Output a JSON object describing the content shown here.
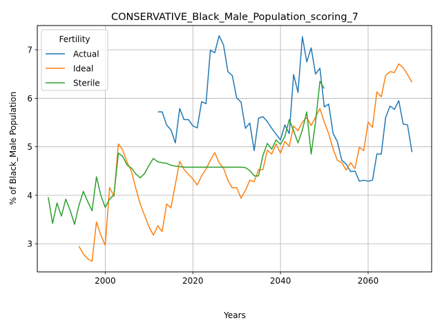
{
  "chart_data": {
    "type": "line",
    "title": "CONSERVATIVE_Black_Male_Population_scoring_7",
    "xlabel": "Years",
    "ylabel": "% of Black_Male Population",
    "xlim": [
      1984.5,
      2074.5
    ],
    "ylim": [
      2.42,
      7.5
    ],
    "x_ticks": [
      2000,
      2020,
      2040,
      2060
    ],
    "y_ticks": [
      3,
      4,
      5,
      6,
      7
    ],
    "grid": true,
    "legend": {
      "title": "Fertility",
      "placement": "top-left"
    },
    "series": [
      {
        "name": "Actual",
        "color": "#1f77b4",
        "points": [
          [
            2012,
            5.72
          ],
          [
            2013,
            5.72
          ],
          [
            2014,
            5.45
          ],
          [
            2015,
            5.35
          ],
          [
            2016,
            5.08
          ],
          [
            2017,
            5.79
          ],
          [
            2018,
            5.56
          ],
          [
            2019,
            5.56
          ],
          [
            2020,
            5.43
          ],
          [
            2021,
            5.39
          ],
          [
            2022,
            5.93
          ],
          [
            2023,
            5.89
          ],
          [
            2024,
            6.99
          ],
          [
            2025,
            6.94
          ],
          [
            2026,
            7.29
          ],
          [
            2027,
            7.1
          ],
          [
            2028,
            6.55
          ],
          [
            2029,
            6.47
          ],
          [
            2030,
            6.01
          ],
          [
            2031,
            5.92
          ],
          [
            2032,
            5.38
          ],
          [
            2033,
            5.49
          ],
          [
            2034,
            4.92
          ],
          [
            2035,
            5.59
          ],
          [
            2036,
            5.62
          ],
          [
            2037,
            5.52
          ],
          [
            2038,
            5.38
          ],
          [
            2039,
            5.26
          ],
          [
            2040,
            5.14
          ],
          [
            2041,
            5.45
          ],
          [
            2042,
            5.27
          ],
          [
            2043,
            6.49
          ],
          [
            2044,
            6.12
          ],
          [
            2045,
            7.27
          ],
          [
            2046,
            6.75
          ],
          [
            2047,
            7.04
          ],
          [
            2048,
            6.5
          ],
          [
            2049,
            6.62
          ],
          [
            2050,
            5.82
          ],
          [
            2051,
            5.88
          ],
          [
            2052,
            5.28
          ],
          [
            2053,
            5.1
          ],
          [
            2054,
            4.72
          ],
          [
            2055,
            4.64
          ],
          [
            2056,
            4.49
          ],
          [
            2057,
            4.5
          ],
          [
            2058,
            4.29
          ],
          [
            2059,
            4.31
          ],
          [
            2060,
            4.29
          ],
          [
            2061,
            4.31
          ],
          [
            2062,
            4.85
          ],
          [
            2063,
            4.85
          ],
          [
            2064,
            5.6
          ],
          [
            2065,
            5.84
          ],
          [
            2066,
            5.77
          ],
          [
            2067,
            5.95
          ],
          [
            2068,
            5.47
          ],
          [
            2069,
            5.45
          ],
          [
            2070,
            4.89
          ]
        ]
      },
      {
        "name": "Ideal",
        "color": "#ff7f0e",
        "points": [
          [
            1994,
            2.95
          ],
          [
            1995,
            2.79
          ],
          [
            1996,
            2.69
          ],
          [
            1997,
            2.64
          ],
          [
            1998,
            3.45
          ],
          [
            1999,
            3.18
          ],
          [
            2000,
            2.97
          ],
          [
            2001,
            4.16
          ],
          [
            2002,
            3.98
          ],
          [
            2003,
            5.06
          ],
          [
            2004,
            4.93
          ],
          [
            2005,
            4.68
          ],
          [
            2006,
            4.49
          ],
          [
            2007,
            4.14
          ],
          [
            2008,
            3.82
          ],
          [
            2009,
            3.58
          ],
          [
            2010,
            3.35
          ],
          [
            2011,
            3.18
          ],
          [
            2012,
            3.37
          ],
          [
            2013,
            3.25
          ],
          [
            2014,
            3.82
          ],
          [
            2015,
            3.74
          ],
          [
            2016,
            4.22
          ],
          [
            2017,
            4.7
          ],
          [
            2018,
            4.53
          ],
          [
            2019,
            4.43
          ],
          [
            2020,
            4.34
          ],
          [
            2021,
            4.21
          ],
          [
            2022,
            4.4
          ],
          [
            2023,
            4.54
          ],
          [
            2024,
            4.72
          ],
          [
            2025,
            4.88
          ],
          [
            2026,
            4.67
          ],
          [
            2027,
            4.56
          ],
          [
            2028,
            4.31
          ],
          [
            2029,
            4.15
          ],
          [
            2030,
            4.16
          ],
          [
            2031,
            3.94
          ],
          [
            2032,
            4.1
          ],
          [
            2033,
            4.31
          ],
          [
            2034,
            4.28
          ],
          [
            2035,
            4.53
          ],
          [
            2036,
            4.53
          ],
          [
            2037,
            4.93
          ],
          [
            2038,
            4.85
          ],
          [
            2039,
            5.06
          ],
          [
            2040,
            4.87
          ],
          [
            2041,
            5.11
          ],
          [
            2042,
            5.01
          ],
          [
            2043,
            5.43
          ],
          [
            2044,
            5.33
          ],
          [
            2045,
            5.51
          ],
          [
            2046,
            5.6
          ],
          [
            2047,
            5.44
          ],
          [
            2048,
            5.61
          ],
          [
            2049,
            5.79
          ],
          [
            2050,
            5.51
          ],
          [
            2051,
            5.27
          ],
          [
            2052,
            4.96
          ],
          [
            2053,
            4.72
          ],
          [
            2054,
            4.67
          ],
          [
            2055,
            4.52
          ],
          [
            2056,
            4.67
          ],
          [
            2057,
            4.55
          ],
          [
            2058,
            4.99
          ],
          [
            2059,
            4.92
          ],
          [
            2060,
            5.51
          ],
          [
            2061,
            5.4
          ],
          [
            2062,
            6.13
          ],
          [
            2063,
            6.03
          ],
          [
            2064,
            6.47
          ],
          [
            2065,
            6.55
          ],
          [
            2066,
            6.53
          ],
          [
            2067,
            6.71
          ],
          [
            2068,
            6.63
          ],
          [
            2069,
            6.49
          ],
          [
            2070,
            6.33
          ]
        ]
      },
      {
        "name": "Sterile",
        "color": "#2ca02c",
        "points": [
          [
            1987,
            3.96
          ],
          [
            1988,
            3.42
          ],
          [
            1989,
            3.84
          ],
          [
            1990,
            3.57
          ],
          [
            1991,
            3.92
          ],
          [
            1992,
            3.69
          ],
          [
            1993,
            3.4
          ],
          [
            1994,
            3.79
          ],
          [
            1995,
            4.08
          ],
          [
            1996,
            3.87
          ],
          [
            1997,
            3.68
          ],
          [
            1998,
            4.38
          ],
          [
            1999,
            4.0
          ],
          [
            2000,
            3.75
          ],
          [
            2001,
            3.92
          ],
          [
            2002,
            4.01
          ],
          [
            2003,
            4.87
          ],
          [
            2004,
            4.8
          ],
          [
            2005,
            4.62
          ],
          [
            2006,
            4.56
          ],
          [
            2007,
            4.44
          ],
          [
            2008,
            4.36
          ],
          [
            2009,
            4.45
          ],
          [
            2010,
            4.62
          ],
          [
            2011,
            4.76
          ],
          [
            2012,
            4.69
          ],
          [
            2013,
            4.67
          ],
          [
            2014,
            4.66
          ],
          [
            2015,
            4.62
          ],
          [
            2016,
            4.6
          ],
          [
            2017,
            4.59
          ],
          [
            2018,
            4.58
          ],
          [
            2019,
            4.58
          ],
          [
            2020,
            4.58
          ],
          [
            2021,
            4.58
          ],
          [
            2022,
            4.58
          ],
          [
            2023,
            4.58
          ],
          [
            2024,
            4.58
          ],
          [
            2025,
            4.58
          ],
          [
            2026,
            4.58
          ],
          [
            2027,
            4.58
          ],
          [
            2028,
            4.58
          ],
          [
            2029,
            4.58
          ],
          [
            2030,
            4.58
          ],
          [
            2031,
            4.58
          ],
          [
            2032,
            4.57
          ],
          [
            2033,
            4.51
          ],
          [
            2034,
            4.4
          ],
          [
            2035,
            4.4
          ],
          [
            2036,
            4.82
          ],
          [
            2037,
            5.07
          ],
          [
            2038,
            4.95
          ],
          [
            2039,
            5.14
          ],
          [
            2040,
            5.05
          ],
          [
            2041,
            5.21
          ],
          [
            2042,
            5.56
          ],
          [
            2043,
            5.33
          ],
          [
            2044,
            5.08
          ],
          [
            2045,
            5.35
          ],
          [
            2046,
            5.72
          ],
          [
            2047,
            4.85
          ],
          [
            2048,
            5.51
          ],
          [
            2049,
            6.35
          ],
          [
            2050,
            6.2
          ]
        ]
      }
    ]
  }
}
